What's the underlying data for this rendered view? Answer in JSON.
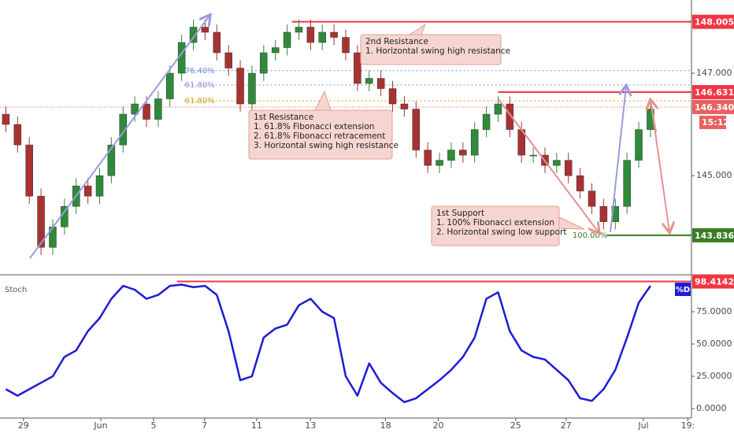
{
  "chart_data": [
    {
      "type": "candlestick",
      "xlim": [
        -0.5,
        58.5
      ],
      "xticks": [
        {
          "value": 1.5,
          "label": "29"
        },
        {
          "value": 8.1,
          "label": "Jun"
        },
        {
          "value": 12.6,
          "label": "5"
        },
        {
          "value": 16.95,
          "label": "7"
        },
        {
          "value": 21.4,
          "label": "11"
        },
        {
          "value": 26,
          "label": "13"
        },
        {
          "value": 32.4,
          "label": "18"
        },
        {
          "value": 36.9,
          "label": "20"
        },
        {
          "value": 43.5,
          "label": "25"
        },
        {
          "value": 47.8,
          "label": "27"
        },
        {
          "value": 54.4,
          "label": "Jul"
        },
        {
          "value": 58.2,
          "label": "19:"
        }
      ],
      "ylim": [
        143.08,
        148.43
      ],
      "yticks": [
        {
          "value": 147,
          "label": "147.000"
        },
        {
          "value": 145,
          "label": "145.000"
        }
      ],
      "up_color": "#2f8a3a",
      "down_color": "#a83232",
      "open": [
        146.2,
        146.0,
        145.6,
        144.6,
        143.6,
        144.0,
        144.4,
        144.8,
        144.6,
        145.0,
        145.6,
        146.2,
        146.4,
        146.1,
        146.5,
        147.0,
        147.6,
        147.9,
        147.8,
        147.4,
        147.1,
        146.4,
        147.0,
        147.4,
        147.5,
        147.8,
        147.9,
        147.6,
        147.8,
        147.7,
        147.4,
        146.8,
        146.9,
        146.7,
        146.4,
        146.3,
        145.5,
        145.2,
        145.3,
        145.5,
        145.4,
        145.9,
        146.2,
        146.4,
        145.9,
        145.4,
        145.4,
        145.2,
        145.3,
        145.0,
        144.7,
        144.4,
        144.1,
        144.4,
        145.3,
        145.9
      ],
      "high": [
        146.35,
        146.15,
        145.75,
        144.75,
        144.15,
        144.55,
        144.95,
        144.95,
        145.15,
        145.75,
        146.35,
        146.55,
        146.55,
        146.65,
        147.15,
        147.75,
        148.05,
        148.05,
        147.95,
        147.55,
        147.25,
        147.15,
        147.55,
        147.65,
        147.95,
        148.05,
        148.05,
        147.95,
        147.95,
        147.85,
        147.55,
        147.05,
        147.05,
        146.85,
        146.55,
        146.45,
        145.65,
        145.45,
        145.65,
        145.65,
        146.05,
        146.35,
        146.55,
        146.55,
        146.05,
        145.55,
        145.55,
        145.45,
        145.45,
        145.15,
        144.85,
        144.55,
        144.55,
        145.45,
        146.05,
        146.45
      ],
      "low": [
        145.85,
        145.45,
        144.45,
        143.45,
        143.45,
        143.85,
        144.25,
        144.45,
        144.45,
        144.85,
        145.45,
        146.05,
        145.95,
        145.95,
        146.35,
        146.85,
        147.45,
        147.65,
        147.25,
        146.95,
        146.25,
        146.25,
        146.85,
        147.25,
        147.35,
        147.65,
        147.45,
        147.45,
        147.55,
        147.25,
        146.65,
        146.65,
        146.55,
        146.25,
        146.15,
        145.35,
        145.05,
        145.05,
        145.15,
        145.25,
        145.25,
        145.75,
        146.05,
        145.75,
        145.25,
        145.25,
        145.05,
        145.05,
        144.85,
        144.55,
        144.25,
        143.95,
        143.95,
        144.25,
        145.15,
        145.75
      ],
      "close": [
        146.0,
        145.6,
        144.6,
        143.6,
        144.0,
        144.4,
        144.8,
        144.6,
        145.0,
        145.6,
        146.2,
        146.4,
        146.1,
        146.5,
        147.0,
        147.6,
        147.9,
        147.8,
        147.4,
        147.1,
        146.4,
        147.0,
        147.4,
        147.5,
        147.8,
        147.9,
        147.6,
        147.8,
        147.7,
        147.4,
        146.8,
        146.9,
        146.7,
        146.4,
        146.3,
        145.5,
        145.2,
        145.3,
        145.5,
        145.4,
        145.9,
        146.2,
        146.4,
        145.9,
        145.4,
        145.4,
        145.2,
        145.3,
        145.0,
        144.7,
        144.4,
        144.1,
        144.4,
        145.3,
        145.9,
        146.3
      ],
      "levels": [
        {
          "value": 148.005,
          "label": "148.005",
          "color": "#f23645",
          "style": "solid",
          "from": 24.4
        },
        {
          "value": 147.05,
          "fib": "76.40%",
          "color": "#6a8fd8",
          "style": "dotted",
          "from": 15.2
        },
        {
          "value": 146.77,
          "fib": "61.80%",
          "color": "#8f8fd8",
          "style": "dotted",
          "from": 15.2
        },
        {
          "value": 146.631,
          "label": "146.631",
          "color": "#f23645",
          "style": "solid",
          "from": 42.0
        },
        {
          "value": 146.46,
          "fib": "61.80%",
          "color": "#d4a017",
          "style": "dotted",
          "from": 15.2
        },
        {
          "value": 146.34,
          "label": {
            "value": 146.34,
            "label": "146.340"
          },
          "color": "#e86060",
          "style": "thin",
          "from": -0.5
        },
        {
          "value": 143.836,
          "label": "143.836",
          "fib": "100.00%",
          "color": "#3a7d22",
          "style": "solid",
          "from": 51.3
        }
      ],
      "countdown": "15:12",
      "annotations": [
        {
          "lines": [
            "2nd Resistance",
            "1. Horizontal swing high resistance"
          ]
        },
        {
          "lines": [
            "1st Resistance",
            "1. 61.8% Fibonacci extension",
            "2. 61.8% Fibonacci retracement",
            "3. Horizontal swing high resistance"
          ]
        },
        {
          "lines": [
            "1st Support",
            "1. 100% Fibonacci extension",
            "2. Horizontal swing low support"
          ]
        }
      ]
    },
    {
      "type": "line",
      "title": "Stoch",
      "ylim": [
        -6.7,
        103
      ],
      "yticks": [
        {
          "value": 75,
          "label": "75.0000"
        },
        {
          "value": 50,
          "label": "50.0000"
        },
        {
          "value": 25,
          "label": "25.0000"
        },
        {
          "value": 0,
          "label": "0.0000"
        }
      ],
      "series": [
        {
          "name": "%D",
          "color": "#1c1cd6",
          "values": [
            15,
            10,
            15,
            20,
            25,
            40,
            45,
            60,
            70,
            85,
            95,
            92,
            85,
            88,
            95,
            96,
            94,
            95,
            88,
            60,
            22,
            25,
            55,
            62,
            65,
            80,
            85,
            75,
            70,
            25,
            10,
            35,
            20,
            12,
            5,
            8,
            15,
            22,
            30,
            40,
            55,
            85,
            90,
            60,
            45,
            40,
            38,
            30,
            22,
            8,
            6,
            15,
            30,
            55,
            82,
            95
          ]
        }
      ],
      "level": {
        "value": 98.4142,
        "label": "98.4142",
        "color": "#f23645",
        "from": 14.6
      }
    }
  ]
}
